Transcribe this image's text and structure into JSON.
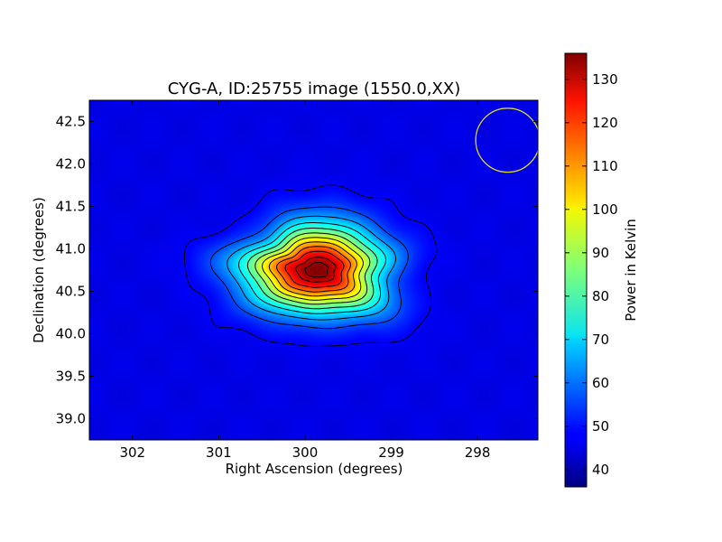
{
  "chart_data": {
    "type": "heatmap",
    "title": "CYG-A, ID:25755 image (1550.0,XX)",
    "xlabel": "Right Ascension (degrees)",
    "ylabel": "Declination (degrees)",
    "xlim": [
      302.5,
      297.3
    ],
    "ylim": [
      38.75,
      42.75
    ],
    "x_ticks": [
      {
        "value": 302,
        "label": "302"
      },
      {
        "value": 301,
        "label": "301"
      },
      {
        "value": 300,
        "label": "300"
      },
      {
        "value": 299,
        "label": "299"
      },
      {
        "value": 298,
        "label": "298"
      }
    ],
    "y_ticks": [
      {
        "value": 39.0,
        "label": "39.0"
      },
      {
        "value": 39.5,
        "label": "39.5"
      },
      {
        "value": 40.0,
        "label": "40.0"
      },
      {
        "value": 40.5,
        "label": "40.5"
      },
      {
        "value": 41.0,
        "label": "41.0"
      },
      {
        "value": 41.5,
        "label": "41.5"
      },
      {
        "value": 42.0,
        "label": "42.0"
      },
      {
        "value": 42.5,
        "label": "42.5"
      }
    ],
    "colorbar": {
      "label": "Power in Kelvin",
      "min": 36,
      "max": 136,
      "ticks": [
        {
          "value": 40,
          "label": "40"
        },
        {
          "value": 50,
          "label": "50"
        },
        {
          "value": 60,
          "label": "60"
        },
        {
          "value": 70,
          "label": "70"
        },
        {
          "value": 80,
          "label": "80"
        },
        {
          "value": 90,
          "label": "90"
        },
        {
          "value": 100,
          "label": "100"
        },
        {
          "value": 110,
          "label": "110"
        },
        {
          "value": 120,
          "label": "120"
        },
        {
          "value": 130,
          "label": "130"
        }
      ],
      "colormap": "jet"
    },
    "source": {
      "center_ra": 299.87,
      "center_dec": 40.75,
      "peak_kelvin": 136,
      "background_kelvin": 46,
      "width_ra_deg": 0.74,
      "width_dec_deg": 0.48
    },
    "contour_levels": [
      48,
      56,
      64,
      72,
      80,
      88,
      96,
      104,
      112,
      120,
      128,
      133
    ],
    "contour_color": "#000000",
    "beam": {
      "center_ra": 297.65,
      "center_dec": 42.28,
      "radius_ra_deg": 0.37,
      "color": "#d8d830"
    },
    "grid": false
  }
}
